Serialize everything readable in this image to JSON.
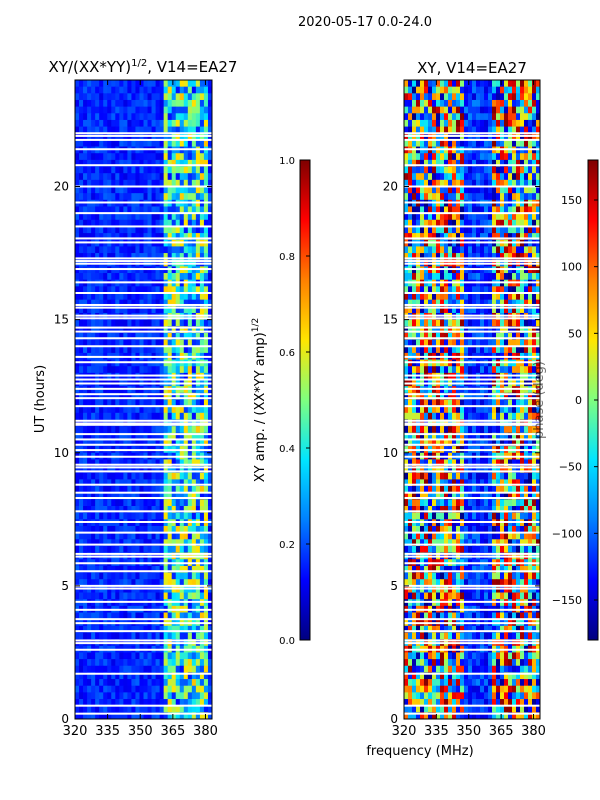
{
  "suptitle": "2020-05-17 0.0-24.0",
  "shared_xlabel": "frequency (MHz)",
  "colormap": [
    "#00007f",
    "#0000ff",
    "#0080ff",
    "#00e5ff",
    "#7fff7f",
    "#ffe500",
    "#ff8000",
    "#ff0000",
    "#7f0000"
  ],
  "chart_data": [
    {
      "type": "heatmap",
      "title_main": "XY/(XX*YY)",
      "title_sup": "1/2",
      "title_tail": ", V14=EA27",
      "xlabel": "",
      "ylabel": "UT (hours)",
      "xlim": [
        320,
        383
      ],
      "ylim": [
        0,
        24
      ],
      "xticks": [
        320,
        335,
        350,
        365,
        380
      ],
      "yticks": [
        0,
        5,
        10,
        15,
        20
      ],
      "colorbar": {
        "label_main": "XY amp. / (XX*YY amp)",
        "label_sup": "1/2",
        "range": [
          0.0,
          1.0
        ],
        "ticks": [
          "0.0",
          "0.2",
          "0.4",
          "0.6",
          "0.8",
          "1.0"
        ]
      },
      "quantity": "normalized cross-correlation amplitude",
      "band_mhz": [
        360,
        382
      ],
      "background_level": 0.1,
      "band_level": 0.4
    },
    {
      "type": "heatmap",
      "title_main": "XY, V14=EA27",
      "xlabel": "",
      "ylabel": "",
      "xlim": [
        320,
        383
      ],
      "ylim": [
        0,
        24
      ],
      "xticks": [
        320,
        335,
        350,
        365,
        380
      ],
      "yticks": [
        0,
        5,
        10,
        15,
        20
      ],
      "colorbar": {
        "label_main": "phase (deg)",
        "range": [
          -180,
          180
        ],
        "ticks": [
          "150",
          "100",
          "50",
          "0",
          "−50",
          "−100",
          "−150"
        ]
      },
      "quantity": "cross-correlation phase",
      "gap_mhz": [
        348,
        360
      ]
    }
  ],
  "flagged_ut_hours": [
    0.2,
    0.5,
    1.7,
    2.6,
    2.85,
    2.95,
    3.3,
    3.6,
    3.75,
    4.1,
    4.4,
    4.9,
    5.0,
    5.55,
    5.85,
    6.1,
    6.2,
    6.55,
    7.0,
    7.4,
    7.8,
    8.3,
    8.5,
    8.8,
    9.3,
    9.45,
    9.55,
    9.85,
    10.1,
    10.3,
    10.5,
    10.7,
    11.05,
    11.1,
    11.2,
    11.75,
    12.05,
    12.2,
    12.4,
    12.6,
    12.75,
    12.9,
    13.4,
    13.6,
    14.0,
    14.3,
    14.55,
    14.7,
    15.05,
    15.15,
    15.45,
    15.55,
    16.0,
    16.4,
    16.9,
    17.1,
    17.2,
    17.3,
    17.9,
    18.05,
    18.5,
    19.0,
    19.4,
    20.0,
    20.8,
    21.4,
    21.75,
    21.9,
    22.0
  ]
}
